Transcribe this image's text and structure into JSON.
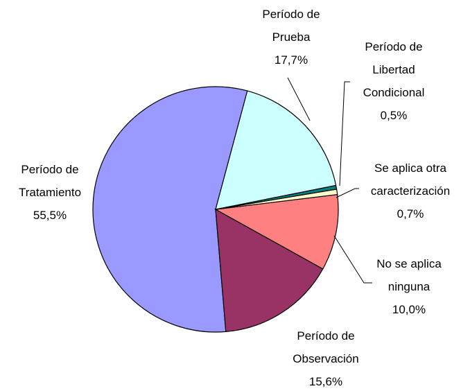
{
  "chart_data": {
    "type": "pie",
    "categories": [
      "Período de Prueba",
      "Período de Libertad Condicional",
      "Se aplica otra caracterización",
      "No se aplica ninguna",
      "Período de Observación",
      "Período de Tratamiento"
    ],
    "values": [
      17.7,
      0.5,
      0.7,
      10.0,
      15.6,
      55.5
    ],
    "value_labels": [
      "17,7%",
      "0,5%",
      "0,7%",
      "10,0%",
      "15,6%",
      "55,5%"
    ],
    "colors": [
      "#ccffff",
      "#008080",
      "#ffffcc",
      "#ff8080",
      "#993366",
      "#9999ff"
    ]
  }
}
